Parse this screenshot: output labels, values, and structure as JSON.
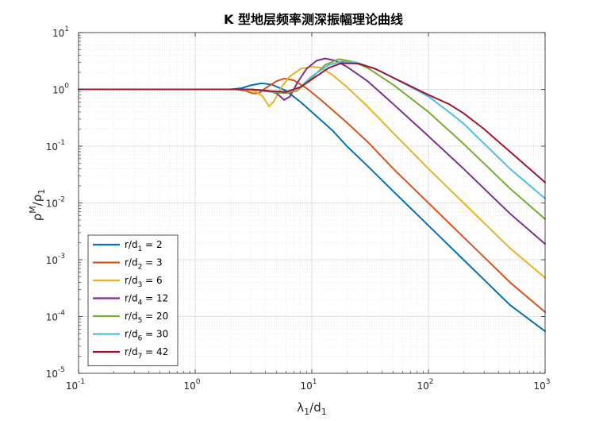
{
  "chart_data": {
    "type": "line",
    "title": "K 型地层频率测深振幅理论曲线",
    "xlabel": {
      "main": "λ",
      "sub1": "1",
      "mid": "/d",
      "sub2": "1"
    },
    "ylabel": {
      "main": "ρ",
      "sup": "M",
      "mid": "/ρ",
      "sub": "1"
    },
    "xscale": "log",
    "yscale": "log",
    "xlim": [
      0.1,
      1000
    ],
    "ylim": [
      1e-05,
      10
    ],
    "x_ticks": [
      {
        "base": "10",
        "exp": "-1",
        "value": 0.1
      },
      {
        "base": "10",
        "exp": "0",
        "value": 1
      },
      {
        "base": "10",
        "exp": "1",
        "value": 10
      },
      {
        "base": "10",
        "exp": "2",
        "value": 100
      },
      {
        "base": "10",
        "exp": "3",
        "value": 1000
      }
    ],
    "y_ticks": [
      {
        "base": "10",
        "exp": "1",
        "value": 10
      },
      {
        "base": "10",
        "exp": "0",
        "value": 1
      },
      {
        "base": "10",
        "exp": "-1",
        "value": 0.1
      },
      {
        "base": "10",
        "exp": "-2",
        "value": 0.01
      },
      {
        "base": "10",
        "exp": "-3",
        "value": 0.001
      },
      {
        "base": "10",
        "exp": "-4",
        "value": 0.0001
      },
      {
        "base": "10",
        "exp": "-5",
        "value": 1e-05
      }
    ],
    "grid": "major and minor",
    "legend_position": "bottom-left",
    "series": [
      {
        "name": "r/d1 = 2",
        "label": {
          "pre": "r/d",
          "sub": "1",
          "post": " = 2"
        },
        "color": "#0072BD",
        "points": [
          [
            0.1,
            1
          ],
          [
            2,
            1
          ],
          [
            2.5,
            1.05
          ],
          [
            3,
            1.18
          ],
          [
            3.7,
            1.28
          ],
          [
            4.5,
            1.22
          ],
          [
            6,
            0.95
          ],
          [
            8,
            0.6
          ],
          [
            10,
            0.4
          ],
          [
            15,
            0.19
          ],
          [
            20,
            0.1
          ],
          [
            30,
            0.045
          ],
          [
            50,
            0.016
          ],
          [
            100,
            0.004
          ],
          [
            200,
            0.001
          ],
          [
            500,
            0.00016
          ],
          [
            1000,
            5.5e-05
          ]
        ]
      },
      {
        "name": "r/d2 = 3",
        "label": {
          "pre": "r/d",
          "sub": "2",
          "post": " = 3"
        },
        "color": "#D95319",
        "points": [
          [
            0.1,
            1
          ],
          [
            2.2,
            1
          ],
          [
            2.7,
            0.95
          ],
          [
            3.1,
            0.85
          ],
          [
            3.5,
            0.85
          ],
          [
            4,
            1.05
          ],
          [
            5,
            1.4
          ],
          [
            5.8,
            1.55
          ],
          [
            7,
            1.45
          ],
          [
            9,
            1.05
          ],
          [
            12,
            0.65
          ],
          [
            20,
            0.26
          ],
          [
            30,
            0.12
          ],
          [
            50,
            0.04
          ],
          [
            100,
            0.01
          ],
          [
            200,
            0.0025
          ],
          [
            500,
            0.0004
          ],
          [
            1000,
            0.00012
          ]
        ]
      },
      {
        "name": "r/d3 = 6",
        "label": {
          "pre": "r/d",
          "sub": "3",
          "post": " = 6"
        },
        "color": "#EDB120",
        "points": [
          [
            0.1,
            1
          ],
          [
            2.5,
            1
          ],
          [
            3.2,
            0.95
          ],
          [
            3.8,
            0.75
          ],
          [
            4.3,
            0.5
          ],
          [
            4.7,
            0.6
          ],
          [
            5.5,
            1.1
          ],
          [
            6.5,
            1.7
          ],
          [
            8,
            2.3
          ],
          [
            10,
            2.5
          ],
          [
            12,
            2.4
          ],
          [
            15,
            1.8
          ],
          [
            20,
            1.1
          ],
          [
            30,
            0.5
          ],
          [
            50,
            0.17
          ],
          [
            100,
            0.04
          ],
          [
            200,
            0.01
          ],
          [
            500,
            0.0016
          ],
          [
            1000,
            0.00048
          ]
        ]
      },
      {
        "name": "r/d4 = 12",
        "label": {
          "pre": "r/d",
          "sub": "4",
          "post": " = 12"
        },
        "color": "#7E2F8E",
        "points": [
          [
            0.1,
            1
          ],
          [
            3,
            1
          ],
          [
            4.2,
            0.95
          ],
          [
            5,
            0.85
          ],
          [
            5.8,
            0.65
          ],
          [
            6.5,
            0.75
          ],
          [
            7.5,
            1.3
          ],
          [
            9,
            2.3
          ],
          [
            11,
            3.2
          ],
          [
            13,
            3.5
          ],
          [
            16,
            3.2
          ],
          [
            20,
            2.5
          ],
          [
            30,
            1.4
          ],
          [
            50,
            0.55
          ],
          [
            100,
            0.15
          ],
          [
            200,
            0.04
          ],
          [
            500,
            0.0065
          ],
          [
            1000,
            0.0019
          ]
        ]
      },
      {
        "name": "r/d5 = 20",
        "label": {
          "pre": "r/d",
          "sub": "5",
          "post": " = 20"
        },
        "color": "#77AC30",
        "points": [
          [
            0.1,
            1
          ],
          [
            3,
            1
          ],
          [
            4.5,
            0.9
          ],
          [
            6,
            0.85
          ],
          [
            7.5,
            0.95
          ],
          [
            10,
            1.6
          ],
          [
            13,
            2.7
          ],
          [
            17,
            3.4
          ],
          [
            22,
            3.1
          ],
          [
            30,
            2.4
          ],
          [
            50,
            1.2
          ],
          [
            100,
            0.4
          ],
          [
            200,
            0.11
          ],
          [
            500,
            0.018
          ],
          [
            1000,
            0.0052
          ]
        ]
      },
      {
        "name": "r/d6 = 30",
        "label": {
          "pre": "r/d",
          "sub": "6",
          "post": " = 30"
        },
        "color": "#4DBEEE",
        "points": [
          [
            0.1,
            1
          ],
          [
            3,
            1
          ],
          [
            4.5,
            0.92
          ],
          [
            6,
            0.9
          ],
          [
            8,
            1.1
          ],
          [
            10,
            1.7
          ],
          [
            14,
            2.7
          ],
          [
            18,
            3.1
          ],
          [
            24,
            3.0
          ],
          [
            35,
            2.3
          ],
          [
            50,
            1.6
          ],
          [
            100,
            0.75
          ],
          [
            150,
            0.4
          ],
          [
            200,
            0.25
          ],
          [
            500,
            0.04
          ],
          [
            1000,
            0.012
          ]
        ]
      },
      {
        "name": "r/d7 = 42",
        "label": {
          "pre": "r/d",
          "sub": "7",
          "post": " = 42"
        },
        "color": "#A2142F",
        "points": [
          [
            0.1,
            1
          ],
          [
            3,
            1
          ],
          [
            4.5,
            0.93
          ],
          [
            6,
            0.9
          ],
          [
            8,
            1.1
          ],
          [
            10,
            1.5
          ],
          [
            14,
            2.4
          ],
          [
            18,
            2.9
          ],
          [
            25,
            2.85
          ],
          [
            35,
            2.3
          ],
          [
            50,
            1.6
          ],
          [
            100,
            0.8
          ],
          [
            150,
            0.55
          ],
          [
            200,
            0.38
          ],
          [
            300,
            0.2
          ],
          [
            500,
            0.08
          ],
          [
            1000,
            0.023
          ]
        ]
      }
    ]
  }
}
